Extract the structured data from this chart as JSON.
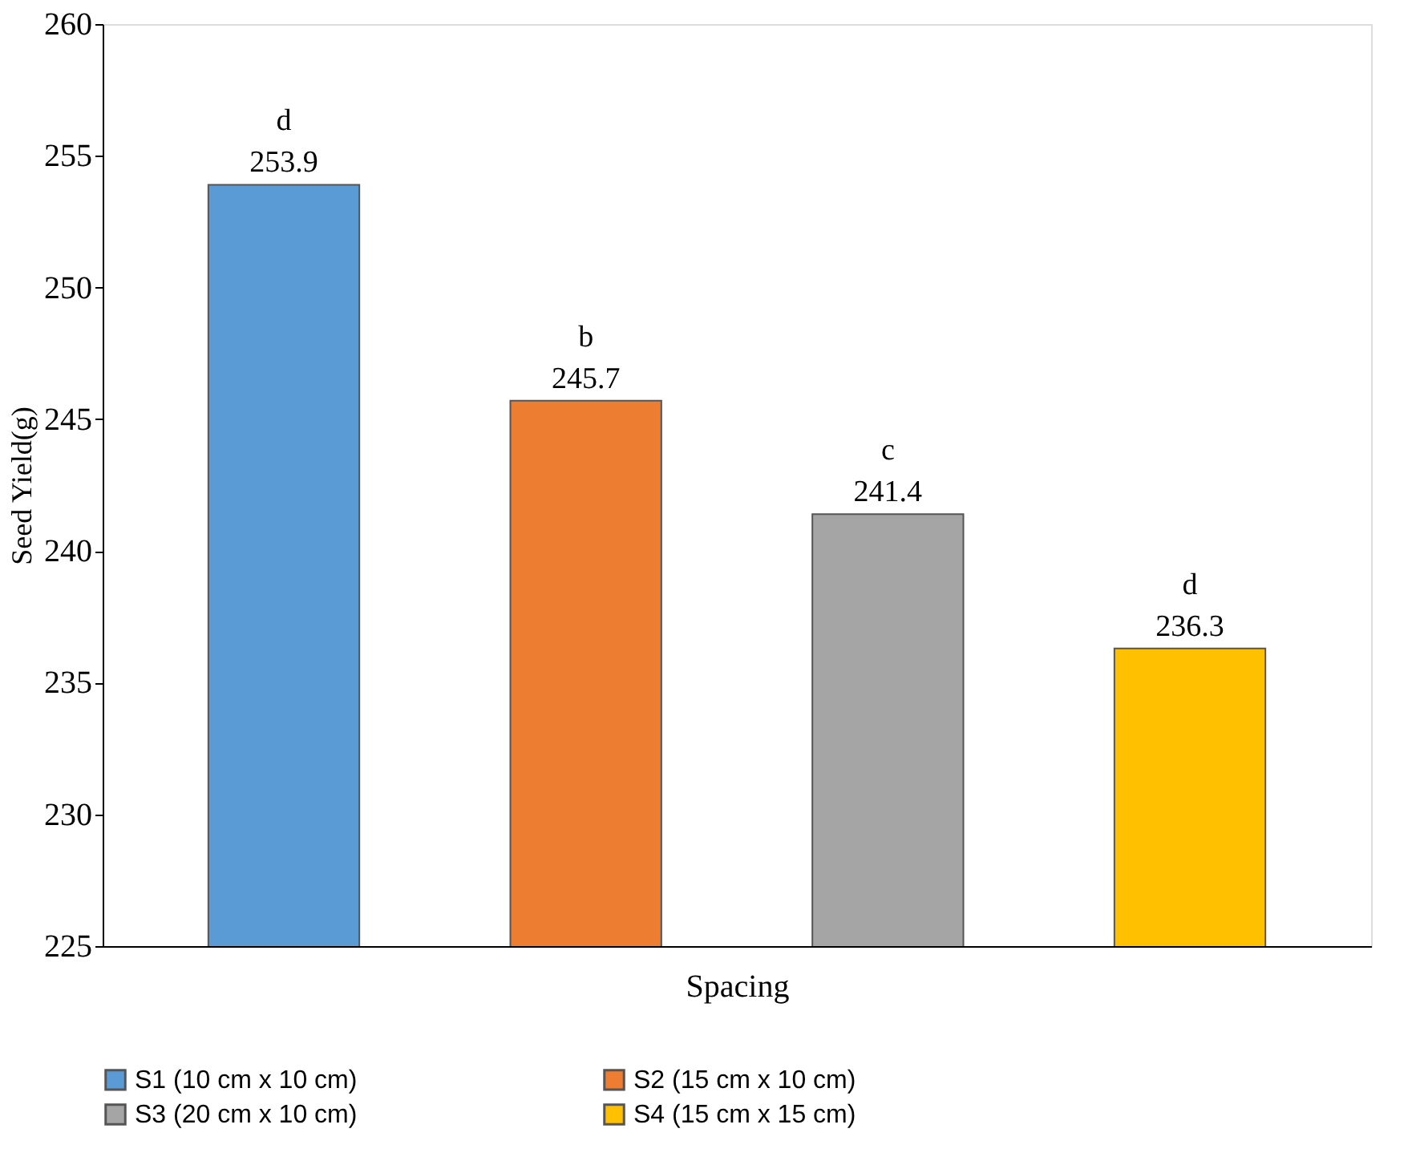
{
  "chart_data": {
    "type": "bar",
    "categories": [
      null
    ],
    "xlabel": "Spacing",
    "ylabel": "Seed Yield(g)",
    "series": [
      {
        "name": "S1 (10 cm x 10 cm)",
        "color": "#5b9bd5",
        "values": [
          253.9
        ]
      },
      {
        "name": "S2 (15 cm x 10 cm)",
        "color": "#ed7d31",
        "values": [
          245.7
        ]
      },
      {
        "name": "S3 (20 cm x 10 cm)",
        "color": "#a5a5a5",
        "values": [
          241.4
        ]
      },
      {
        "name": "S4 (15 cm x 15 cm)",
        "color": "#ffc000",
        "values": [
          236.3
        ]
      }
    ],
    "annotations": [
      "d",
      "b",
      "c",
      "d"
    ],
    "ylim": [
      225,
      260
    ],
    "yticks": [
      225,
      230,
      235,
      240,
      245,
      250,
      255,
      260
    ],
    "data_labels": true,
    "grid": false,
    "legend": "bottom"
  }
}
